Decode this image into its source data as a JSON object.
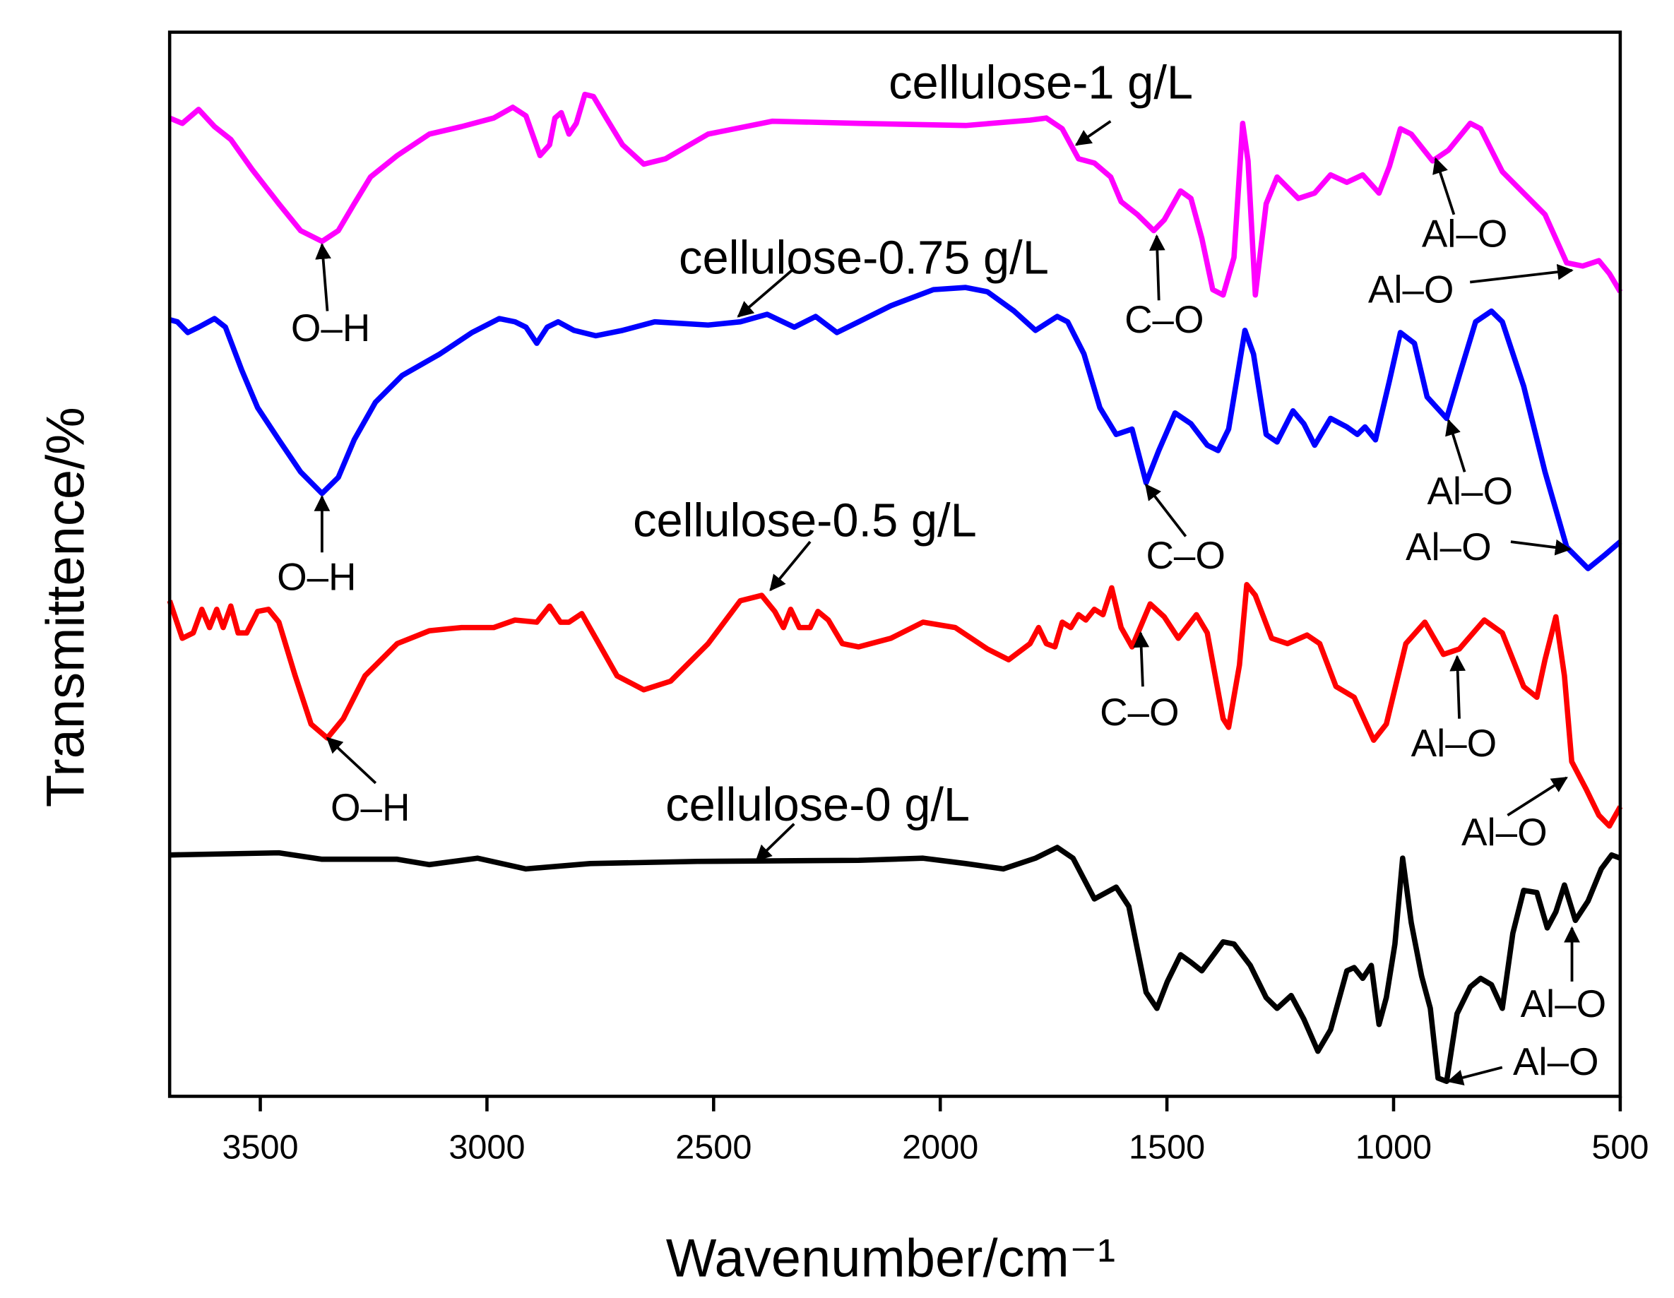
{
  "chart_data": {
    "type": "line",
    "x_label": "Wavenumber/cm⁻¹",
    "y_label": "Transmittence/%",
    "xlim": [
      3700,
      500
    ],
    "xticks": [
      3500,
      3000,
      2500,
      2000,
      1500,
      1000,
      500
    ],
    "ylim": [
      0,
      992
    ],
    "series": [
      {
        "name": "cellulose-1 g/L",
        "color": "#ff00ff",
        "x": [
          3700,
          3672,
          3636,
          3601,
          3565,
          3518,
          3459,
          3411,
          3364,
          3328,
          3293,
          3257,
          3198,
          3127,
          3056,
          2985,
          2943,
          2914,
          2883,
          2862,
          2850,
          2836,
          2819,
          2803,
          2784,
          2765,
          2737,
          2701,
          2654,
          2606,
          2512,
          2370,
          2180,
          1944,
          1802,
          1766,
          1731,
          1695,
          1660,
          1624,
          1601,
          1565,
          1529,
          1506,
          1470,
          1447,
          1423,
          1399,
          1376,
          1352,
          1333,
          1321,
          1305,
          1281,
          1257,
          1210,
          1174,
          1139,
          1103,
          1068,
          1032,
          1009,
          985,
          961,
          914,
          879,
          831,
          808,
          760,
          713,
          666,
          618,
          583,
          547,
          524,
          500
        ],
        "values": [
          912,
          907,
          920,
          904,
          892,
          864,
          832,
          807,
          797,
          807,
          832,
          857,
          877,
          897,
          904,
          912,
          922,
          914,
          877,
          887,
          912,
          917,
          897,
          907,
          934,
          932,
          912,
          887,
          869,
          874,
          897,
          909,
          907,
          905,
          910,
          912,
          902,
          874,
          870,
          857,
          834,
          822,
          807,
          817,
          844,
          837,
          800,
          752,
          747,
          782,
          907,
          872,
          747,
          832,
          857,
          837,
          842,
          859,
          852,
          859,
          842,
          867,
          902,
          897,
          872,
          882,
          907,
          902,
          862,
          842,
          822,
          777,
          774,
          779,
          767,
          750
        ]
      },
      {
        "name": "cellulose-0.75 g/L",
        "color": "#0000ff",
        "x": [
          3700,
          3683,
          3660,
          3636,
          3601,
          3577,
          3541,
          3506,
          3459,
          3411,
          3364,
          3328,
          3293,
          3246,
          3187,
          3104,
          3033,
          2973,
          2938,
          2914,
          2890,
          2867,
          2843,
          2808,
          2760,
          2701,
          2630,
          2512,
          2441,
          2382,
          2322,
          2275,
          2228,
          2180,
          2109,
          2015,
          1944,
          1896,
          1837,
          1790,
          1742,
          1719,
          1683,
          1648,
          1612,
          1577,
          1546,
          1518,
          1482,
          1447,
          1411,
          1387,
          1364,
          1328,
          1309,
          1281,
          1257,
          1222,
          1198,
          1174,
          1139,
          1103,
          1080,
          1063,
          1040,
          1009,
          985,
          954,
          926,
          883,
          855,
          819,
          784,
          760,
          713,
          666,
          618,
          571,
          536,
          500
        ],
        "values": [
          724,
          722,
          712,
          717,
          725,
          717,
          677,
          642,
          612,
          582,
          562,
          577,
          612,
          647,
          672,
          692,
          712,
          725,
          722,
          717,
          702,
          717,
          722,
          714,
          709,
          714,
          722,
          719,
          722,
          729,
          717,
          727,
          712,
          722,
          737,
          752,
          754,
          750,
          732,
          714,
          727,
          722,
          692,
          642,
          617,
          622,
          572,
          602,
          637,
          627,
          607,
          602,
          622,
          714,
          692,
          617,
          610,
          639,
          627,
          607,
          632,
          624,
          617,
          624,
          612,
          667,
          712,
          702,
          652,
          632,
          672,
          722,
          732,
          722,
          662,
          582,
          512,
          492,
          504,
          517
        ]
      },
      {
        "name": "cellulose-0.5 g/L",
        "color": "#ff0000",
        "x": [
          3700,
          3672,
          3648,
          3629,
          3612,
          3596,
          3582,
          3565,
          3549,
          3530,
          3506,
          3482,
          3459,
          3423,
          3388,
          3352,
          3317,
          3269,
          3198,
          3127,
          3056,
          2985,
          2938,
          2890,
          2862,
          2838,
          2819,
          2791,
          2760,
          2713,
          2654,
          2595,
          2512,
          2441,
          2394,
          2365,
          2346,
          2330,
          2311,
          2287,
          2270,
          2247,
          2216,
          2180,
          2109,
          2038,
          1967,
          1896,
          1849,
          1802,
          1783,
          1766,
          1747,
          1731,
          1712,
          1695,
          1679,
          1660,
          1641,
          1622,
          1601,
          1577,
          1537,
          1506,
          1475,
          1435,
          1411,
          1376,
          1364,
          1340,
          1324,
          1305,
          1269,
          1234,
          1191,
          1163,
          1127,
          1087,
          1044,
          1016,
          973,
          931,
          890,
          855,
          800,
          760,
          713,
          684,
          666,
          642,
          623,
          607,
          576,
          547,
          524,
          500
        ],
        "values": [
          462,
          427,
          432,
          454,
          437,
          454,
          437,
          457,
          432,
          432,
          452,
          454,
          442,
          392,
          347,
          334,
          352,
          392,
          422,
          434,
          437,
          437,
          444,
          442,
          457,
          442,
          442,
          450,
          427,
          392,
          379,
          387,
          422,
          462,
          467,
          452,
          437,
          454,
          437,
          437,
          452,
          444,
          422,
          419,
          427,
          442,
          437,
          417,
          407,
          422,
          437,
          422,
          419,
          442,
          437,
          449,
          444,
          454,
          449,
          474,
          437,
          419,
          459,
          447,
          427,
          449,
          432,
          352,
          344,
          402,
          477,
          467,
          427,
          422,
          430,
          422,
          382,
          372,
          332,
          347,
          422,
          442,
          412,
          417,
          444,
          432,
          382,
          372,
          407,
          447,
          392,
          312,
          287,
          262,
          252,
          270
        ]
      },
      {
        "name": "cellulose-0 g/L",
        "color": "#000000",
        "x": [
          3700,
          3459,
          3364,
          3198,
          3127,
          3021,
          2914,
          2772,
          2535,
          2180,
          2038,
          1944,
          1861,
          1790,
          1742,
          1707,
          1660,
          1612,
          1584,
          1565,
          1546,
          1522,
          1499,
          1470,
          1447,
          1423,
          1376,
          1352,
          1316,
          1281,
          1257,
          1226,
          1198,
          1167,
          1139,
          1103,
          1087,
          1068,
          1049,
          1032,
          1016,
          997,
          980,
          961,
          938,
          919,
          902,
          883,
          860,
          831,
          808,
          784,
          760,
          737,
          713,
          684,
          661,
          642,
          623,
          599,
          571,
          542,
          519,
          500
        ],
        "values": [
          225,
          227,
          221,
          221,
          216,
          222,
          212,
          217,
          219,
          220,
          222,
          217,
          212,
          222,
          232,
          222,
          184,
          195,
          177,
          137,
          97,
          82,
          107,
          132,
          125,
          117,
          144,
          142,
          122,
          92,
          82,
          94,
          72,
          42,
          62,
          117,
          120,
          110,
          122,
          67,
          92,
          142,
          222,
          162,
          112,
          82,
          17,
          14,
          77,
          102,
          110,
          104,
          82,
          152,
          192,
          190,
          157,
          172,
          197,
          164,
          182,
          212,
          225,
          222
        ]
      }
    ],
    "annotations": [
      "O–H",
      "C–O",
      "Al–O",
      "Al–O",
      "O–H",
      "C–O",
      "Al–O",
      "Al–O",
      "O–H",
      "C–O",
      "Al–O",
      "Al–O",
      "Al–O",
      "Al–O"
    ]
  }
}
